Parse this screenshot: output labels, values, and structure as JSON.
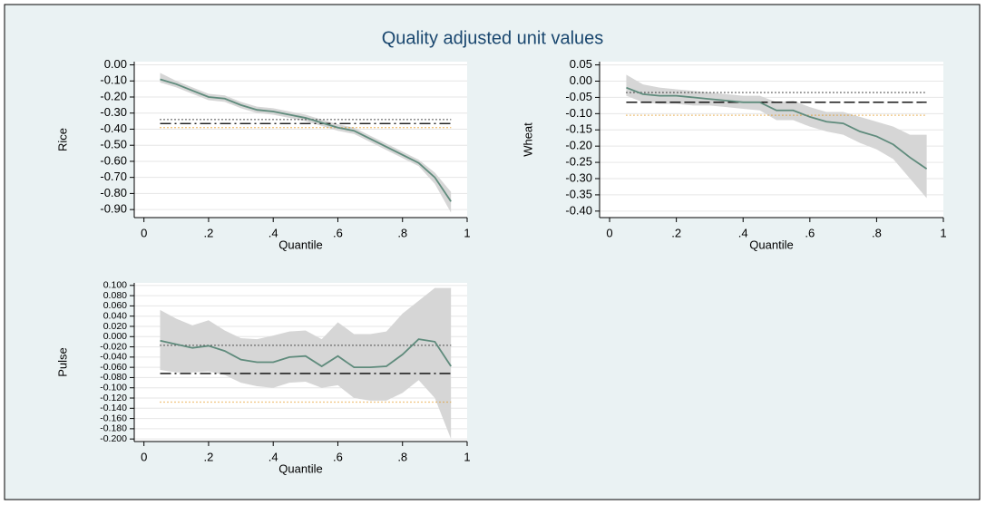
{
  "title": "Quality adjusted unit values",
  "chart_data": [
    {
      "type": "line",
      "ylabel": "Rice",
      "xlabel": "Quantile",
      "x": [
        0.05,
        0.1,
        0.15,
        0.2,
        0.25,
        0.3,
        0.35,
        0.4,
        0.45,
        0.5,
        0.55,
        0.6,
        0.65,
        0.7,
        0.75,
        0.8,
        0.85,
        0.9,
        0.95
      ],
      "series": [
        {
          "color": "#5f8b7c",
          "values": [
            -0.09,
            -0.12,
            -0.16,
            -0.2,
            -0.21,
            -0.25,
            -0.28,
            -0.29,
            -0.31,
            -0.33,
            -0.36,
            -0.39,
            -0.41,
            -0.46,
            -0.51,
            -0.56,
            -0.61,
            -0.7,
            -0.85
          ]
        }
      ],
      "band": {
        "color": "#d6d6d6",
        "upper": [
          -0.05,
          -0.1,
          -0.14,
          -0.18,
          -0.19,
          -0.23,
          -0.26,
          -0.27,
          -0.29,
          -0.31,
          -0.34,
          -0.37,
          -0.39,
          -0.44,
          -0.49,
          -0.54,
          -0.59,
          -0.67,
          -0.79
        ],
        "lower": [
          -0.11,
          -0.14,
          -0.18,
          -0.22,
          -0.23,
          -0.27,
          -0.3,
          -0.31,
          -0.33,
          -0.35,
          -0.38,
          -0.41,
          -0.43,
          -0.48,
          -0.53,
          -0.58,
          -0.63,
          -0.74,
          -0.92
        ]
      },
      "hlines": [
        {
          "value": -0.365,
          "dash": "12 4 2 4",
          "color": "#000000"
        },
        {
          "value": -0.34,
          "dash": "1 3",
          "color": "#000000"
        },
        {
          "value": -0.39,
          "dash": "1 3",
          "color": "#e08a00"
        }
      ],
      "xlim": [
        -0.03,
        1.0
      ],
      "xticks": [
        0,
        {
          "value": 0.2,
          "label": ".2"
        },
        {
          "value": 0.4,
          "label": ".4"
        },
        {
          "value": 0.6,
          "label": ".6"
        },
        {
          "value": 0.8,
          "label": ".8"
        },
        1
      ],
      "ylim": [
        -0.95,
        0.02
      ],
      "yticks": [
        {
          "value": 0,
          "label": "0.00"
        },
        {
          "value": -0.1,
          "label": "-0.10"
        },
        {
          "value": -0.2,
          "label": "-0.20"
        },
        {
          "value": -0.3,
          "label": "-0.30"
        },
        {
          "value": -0.4,
          "label": "-0.40"
        },
        {
          "value": -0.5,
          "label": "-0.50"
        },
        {
          "value": -0.6,
          "label": "-0.60"
        },
        {
          "value": -0.7,
          "label": "-0.70"
        },
        {
          "value": -0.8,
          "label": "-0.80"
        },
        {
          "value": -0.9,
          "label": "-0.90"
        }
      ],
      "grid": true
    },
    {
      "type": "line",
      "ylabel": "Wheat",
      "xlabel": "Quantile",
      "x": [
        0.05,
        0.1,
        0.15,
        0.2,
        0.25,
        0.3,
        0.35,
        0.4,
        0.45,
        0.5,
        0.55,
        0.6,
        0.65,
        0.7,
        0.75,
        0.8,
        0.85,
        0.9,
        0.95
      ],
      "series": [
        {
          "color": "#5f8b7c",
          "values": [
            -0.02,
            -0.04,
            -0.045,
            -0.045,
            -0.05,
            -0.055,
            -0.06,
            -0.065,
            -0.065,
            -0.09,
            -0.09,
            -0.11,
            -0.125,
            -0.13,
            -0.155,
            -0.17,
            -0.195,
            -0.235,
            -0.27
          ]
        }
      ],
      "band": {
        "color": "#d6d6d6",
        "upper": [
          0.02,
          -0.01,
          -0.02,
          -0.025,
          -0.03,
          -0.035,
          -0.04,
          -0.045,
          -0.045,
          -0.065,
          -0.06,
          -0.08,
          -0.095,
          -0.095,
          -0.11,
          -0.125,
          -0.14,
          -0.165,
          -0.165
        ],
        "lower": [
          -0.045,
          -0.065,
          -0.07,
          -0.07,
          -0.075,
          -0.075,
          -0.08,
          -0.085,
          -0.09,
          -0.12,
          -0.12,
          -0.14,
          -0.155,
          -0.165,
          -0.19,
          -0.21,
          -0.24,
          -0.3,
          -0.36
        ]
      },
      "hlines": [
        {
          "value": -0.065,
          "dash": "12 4",
          "color": "#000000"
        },
        {
          "value": -0.035,
          "dash": "1 3",
          "color": "#000000"
        },
        {
          "value": -0.105,
          "dash": "1 3",
          "color": "#e08a00"
        }
      ],
      "xlim": [
        -0.03,
        1.0
      ],
      "xticks": [
        0,
        {
          "value": 0.2,
          "label": ".2"
        },
        {
          "value": 0.4,
          "label": ".4"
        },
        {
          "value": 0.6,
          "label": ".6"
        },
        {
          "value": 0.8,
          "label": ".8"
        },
        1
      ],
      "ylim": [
        -0.42,
        0.06
      ],
      "yticks": [
        {
          "value": 0.05,
          "label": "0.05"
        },
        {
          "value": 0,
          "label": "0.00"
        },
        {
          "value": -0.05,
          "label": "-0.05"
        },
        {
          "value": -0.1,
          "label": "-0.10"
        },
        {
          "value": -0.15,
          "label": "-0.15"
        },
        {
          "value": -0.2,
          "label": "-0.20"
        },
        {
          "value": -0.25,
          "label": "-0.25"
        },
        {
          "value": -0.3,
          "label": "-0.30"
        },
        {
          "value": -0.35,
          "label": "-0.35"
        },
        {
          "value": -0.4,
          "label": "-0.40"
        }
      ],
      "grid": true
    },
    {
      "type": "line",
      "ylabel": "Pulse",
      "xlabel": "Quantile",
      "x": [
        0.05,
        0.1,
        0.15,
        0.2,
        0.25,
        0.3,
        0.35,
        0.4,
        0.45,
        0.5,
        0.55,
        0.6,
        0.65,
        0.7,
        0.75,
        0.8,
        0.85,
        0.9,
        0.95
      ],
      "series": [
        {
          "color": "#5f8b7c",
          "values": [
            -0.008,
            -0.015,
            -0.022,
            -0.018,
            -0.028,
            -0.045,
            -0.05,
            -0.05,
            -0.04,
            -0.038,
            -0.058,
            -0.038,
            -0.06,
            -0.06,
            -0.058,
            -0.035,
            -0.005,
            -0.01,
            -0.058
          ]
        }
      ],
      "band": {
        "color": "#d6d6d6",
        "upper": [
          0.052,
          0.035,
          0.022,
          0.032,
          0.012,
          -0.003,
          -0.005,
          0.002,
          0.01,
          0.012,
          -0.005,
          0.028,
          0.005,
          0.005,
          0.01,
          0.045,
          0.07,
          0.095,
          0.095
        ],
        "lower": [
          -0.065,
          -0.07,
          -0.07,
          -0.068,
          -0.075,
          -0.09,
          -0.097,
          -0.1,
          -0.09,
          -0.088,
          -0.1,
          -0.095,
          -0.12,
          -0.125,
          -0.125,
          -0.11,
          -0.085,
          -0.12,
          -0.2
        ]
      },
      "hlines": [
        {
          "value": -0.072,
          "dash": "12 4 2 4",
          "color": "#000000"
        },
        {
          "value": -0.017,
          "dash": "1 3",
          "color": "#000000"
        },
        {
          "value": -0.128,
          "dash": "1 3",
          "color": "#e08a00"
        }
      ],
      "xlim": [
        -0.03,
        1.0
      ],
      "xticks": [
        0,
        {
          "value": 0.2,
          "label": ".2"
        },
        {
          "value": 0.4,
          "label": ".4"
        },
        {
          "value": 0.6,
          "label": ".6"
        },
        {
          "value": 0.8,
          "label": ".8"
        },
        1
      ],
      "ylim": [
        -0.205,
        0.105
      ],
      "yticks": [
        {
          "value": 0.1,
          "label": "0.100"
        },
        {
          "value": 0.08,
          "label": "0.080"
        },
        {
          "value": 0.06,
          "label": "0.060"
        },
        {
          "value": 0.04,
          "label": "0.040"
        },
        {
          "value": 0.02,
          "label": "0.020"
        },
        {
          "value": 0,
          "label": "0.000"
        },
        {
          "value": -0.02,
          "label": "-0.020"
        },
        {
          "value": -0.04,
          "label": "-0.040"
        },
        {
          "value": -0.06,
          "label": "-0.060"
        },
        {
          "value": -0.08,
          "label": "-0.080"
        },
        {
          "value": -0.1,
          "label": "-0.100"
        },
        {
          "value": -0.12,
          "label": "-0.120"
        },
        {
          "value": -0.14,
          "label": "-0.140"
        },
        {
          "value": -0.16,
          "label": "-0.160"
        },
        {
          "value": -0.18,
          "label": "-0.180"
        },
        {
          "value": -0.2,
          "label": "-0.200"
        }
      ],
      "grid": true
    }
  ]
}
